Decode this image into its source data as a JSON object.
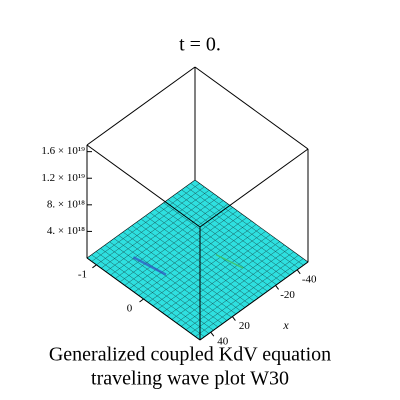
{
  "chart_data": {
    "type": "surface3d",
    "title": "t = 0.",
    "caption": [
      "Generalized coupled KdV equation",
      "traveling wave plot W30"
    ],
    "x_label": "x",
    "xlim": [
      50,
      -50
    ],
    "xticks": [
      -40,
      -20,
      20,
      40
    ],
    "ylim": [
      -1.2,
      1.2
    ],
    "yticks": [
      -1,
      0
    ],
    "zlim": [
      0,
      1.7e+19
    ],
    "zticks": [
      {
        "value": 4e+18,
        "label": "4. × 10¹⁸"
      },
      {
        "value": 8e+18,
        "label": "8. × 10¹⁸"
      },
      {
        "value": 1.2e+19,
        "label": "1.2 × 10¹⁹"
      },
      {
        "value": 1.6e+19,
        "label": "1.6 × 10¹⁹"
      }
    ],
    "color": "#2ee0e0"
  }
}
